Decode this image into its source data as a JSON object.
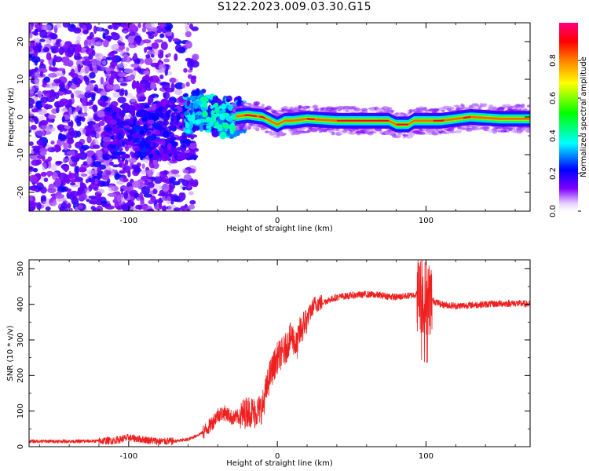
{
  "title": "S122.2023.009.03.30.G15",
  "chart_data": [
    {
      "type": "heatmap",
      "xlabel": "Height of straight line (km)",
      "ylabel": "Frequency (Hz)",
      "xlim": [
        -167,
        170
      ],
      "ylim": [
        -25,
        25
      ],
      "xticks": [
        -100,
        0,
        100
      ],
      "yticks": [
        -20,
        -10,
        0,
        10,
        20
      ],
      "colorbar": {
        "label": "Normalized spectral amplitude",
        "range": [
          0,
          1
        ],
        "ticks": [
          0.0,
          0.2,
          0.4,
          0.6,
          0.8
        ],
        "tick_labels": [
          "0.0",
          "0.2",
          "0.4",
          "0.6",
          "0.8"
        ],
        "colors": [
          "#ffffff",
          "#e8d4ff",
          "#8000ff",
          "#0000ff",
          "#00ffff",
          "#00ff00",
          "#ffff00",
          "#ff8000",
          "#ff0000",
          "#ff0080"
        ]
      },
      "ridge": [
        {
          "x": -60,
          "freq": 1.0
        },
        {
          "x": -50,
          "freq": 2.0
        },
        {
          "x": -40,
          "freq": 0.0
        },
        {
          "x": -30,
          "freq": 0.0
        },
        {
          "x": -20,
          "freq": 0.5
        },
        {
          "x": -10,
          "freq": 0.0
        },
        {
          "x": 0,
          "freq": -2.0
        },
        {
          "x": 5,
          "freq": -1.0
        },
        {
          "x": 10,
          "freq": -1.0
        },
        {
          "x": 20,
          "freq": -0.5
        },
        {
          "x": 40,
          "freq": -1.0
        },
        {
          "x": 60,
          "freq": -1.0
        },
        {
          "x": 75,
          "freq": -1.0
        },
        {
          "x": 80,
          "freq": -2.0
        },
        {
          "x": 88,
          "freq": -2.0
        },
        {
          "x": 92,
          "freq": -1.0
        },
        {
          "x": 110,
          "freq": -1.0
        },
        {
          "x": 130,
          "freq": 0.0
        },
        {
          "x": 150,
          "freq": -0.5
        },
        {
          "x": 170,
          "freq": -0.5
        }
      ]
    },
    {
      "type": "line",
      "xlabel": "Height of straight line (km)",
      "ylabel": "SNR (10 * v/v)",
      "xlim": [
        -167,
        170
      ],
      "ylim": [
        0,
        525
      ],
      "xticks": [
        -100,
        0,
        100
      ],
      "yticks": [
        0,
        100,
        200,
        300,
        400,
        500
      ],
      "series": [
        {
          "color": "#ee2020",
          "x": [
            -167,
            -150,
            -130,
            -110,
            -100,
            -90,
            -80,
            -70,
            -60,
            -50,
            -45,
            -40,
            -35,
            -30,
            -25,
            -20,
            -15,
            -10,
            -8,
            -5,
            0,
            5,
            8,
            10,
            13,
            15,
            20,
            25,
            30,
            40,
            50,
            60,
            70,
            80,
            90,
            95,
            98,
            100,
            102,
            105,
            110,
            120,
            130,
            140,
            150,
            160,
            170
          ],
          "y": [
            15,
            15,
            15,
            17,
            25,
            20,
            15,
            15,
            20,
            40,
            60,
            90,
            95,
            80,
            85,
            100,
            95,
            110,
            150,
            200,
            250,
            270,
            300,
            310,
            280,
            320,
            360,
            400,
            405,
            420,
            425,
            428,
            425,
            420,
            425,
            430,
            420,
            415,
            418,
            410,
            400,
            395,
            398,
            400,
            402,
            403,
            400
          ]
        }
      ]
    }
  ]
}
